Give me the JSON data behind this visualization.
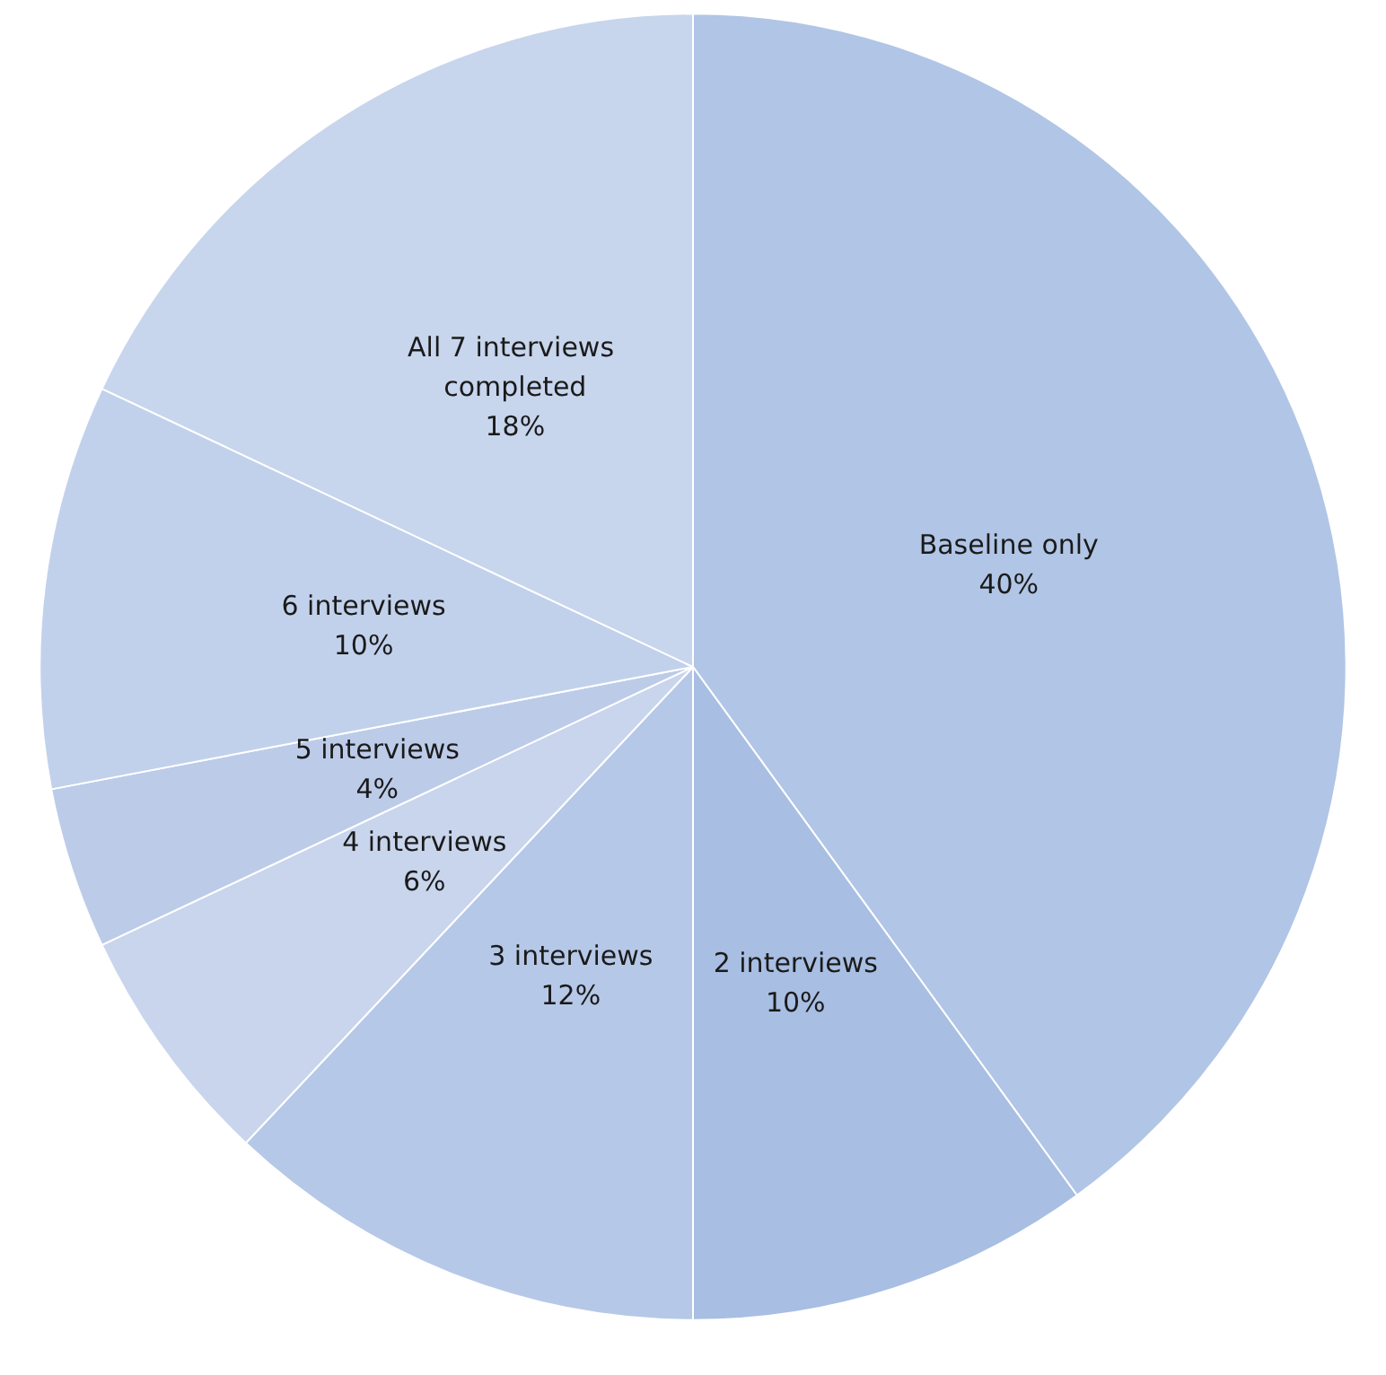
{
  "chart_data": {
    "type": "pie",
    "categories": [
      "Baseline only",
      "2 interviews",
      "3 interviews",
      "4 interviews",
      "5 interviews",
      "6 interviews",
      "All 7 interviews completed"
    ],
    "values": [
      40,
      10,
      12,
      6,
      4,
      10,
      18
    ],
    "value_labels": [
      "40%",
      "10%",
      "12%",
      "6%",
      "4%",
      "10%",
      "18%"
    ],
    "colors": [
      "#b1c5e6",
      "#a8bee2",
      "#b6c8e7",
      "#c8d5ec",
      "#bccbe8",
      "#c2d1eb",
      "#c7d5ed"
    ],
    "legend": false
  }
}
